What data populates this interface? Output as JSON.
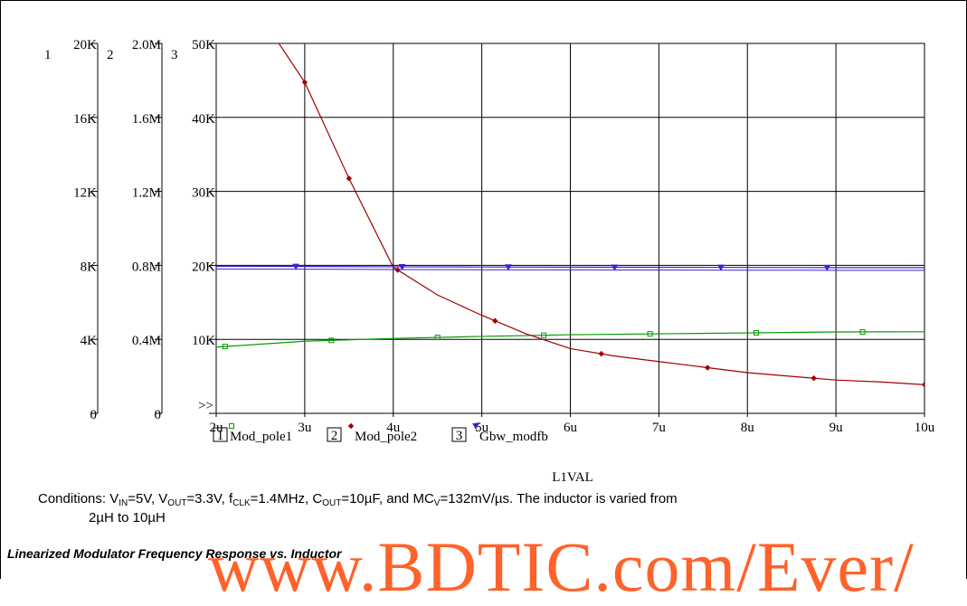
{
  "chart_data": {
    "type": "line",
    "xlabel": "L1VAL",
    "x_ticks": [
      "2u",
      "3u",
      "4u",
      "5u",
      "6u",
      "7u",
      "8u",
      "9u",
      "10u"
    ],
    "xlim": [
      2,
      10
    ],
    "axes": [
      {
        "id": "1",
        "ticks": [
          "0",
          "4K",
          "8K",
          "12K",
          "16K",
          "20K"
        ],
        "ylim": [
          0,
          20000
        ]
      },
      {
        "id": "2",
        "ticks": [
          "0",
          "0.4M",
          "0.8M",
          "1.2M",
          "1.6M",
          "2.0M"
        ],
        "ylim": [
          0,
          2000000
        ]
      },
      {
        "id": "3",
        "ticks": [
          "",
          "10K",
          "20K",
          "30K",
          "40K",
          "50K"
        ],
        "ylim": [
          0,
          50000
        ]
      }
    ],
    "scale_marker": ">>",
    "series": [
      {
        "name": "Mod_pole1",
        "marker_label": "1",
        "axis": "1",
        "color": "#009a00",
        "marker": "square",
        "x": [
          2,
          3,
          4,
          5,
          6,
          7,
          8,
          9,
          10
        ],
        "y": [
          3580,
          3900,
          4050,
          4160,
          4250,
          4300,
          4350,
          4400,
          4410
        ],
        "marker_x": [
          2.1,
          3.3,
          4.5,
          5.7,
          6.9,
          8.1,
          9.3
        ]
      },
      {
        "name": "Mod_pole2",
        "marker_label": "2",
        "axis": "2",
        "color": "#a00000",
        "marker": "diamond",
        "x": [
          2.5,
          3,
          3.5,
          4,
          4.5,
          5,
          5.5,
          6,
          6.5,
          7,
          7.5,
          8,
          8.5,
          9,
          9.5,
          10
        ],
        "y": [
          2150000,
          1790000,
          1270000,
          790000,
          640000,
          530000,
          430000,
          350000,
          310000,
          280000,
          250000,
          220000,
          200000,
          180000,
          170000,
          155000
        ],
        "marker_x": [
          3,
          3.5,
          4.05,
          5.15,
          6.35,
          7.55,
          8.75,
          10
        ]
      },
      {
        "name": "Gbw_modfb",
        "marker_label": "3",
        "axis": "3",
        "color": "#4020d0",
        "marker": "triangle",
        "x": [
          2,
          3,
          4,
          5,
          6,
          7,
          8,
          9,
          10
        ],
        "y": [
          19880,
          19850,
          19810,
          19780,
          19760,
          19740,
          19720,
          19700,
          19700
        ],
        "marker_x": [
          2.9,
          4.1,
          5.3,
          6.5,
          7.7,
          8.9
        ]
      }
    ]
  },
  "caption": {
    "lead": "Conditions: V",
    "vin_sub": "IN",
    "vin_val": "=5V, V",
    "vout_sub": "OUT",
    "vout_val": "=3.3V, f",
    "fclk_sub": "CLK",
    "fclk_val": "=1.4MHz, C",
    "cout_sub": "OUT",
    "cout_val": "=10µF, and MC",
    "mcv_sub": "V",
    "mcv_val": "=132mV/µs. The inductor is varied from",
    "line2": "2µH to 10µH"
  },
  "figure_title": "Linearized Modulator Frequency Response vs. Inductor",
  "watermark": "www.BDTIC.com/Ever/"
}
